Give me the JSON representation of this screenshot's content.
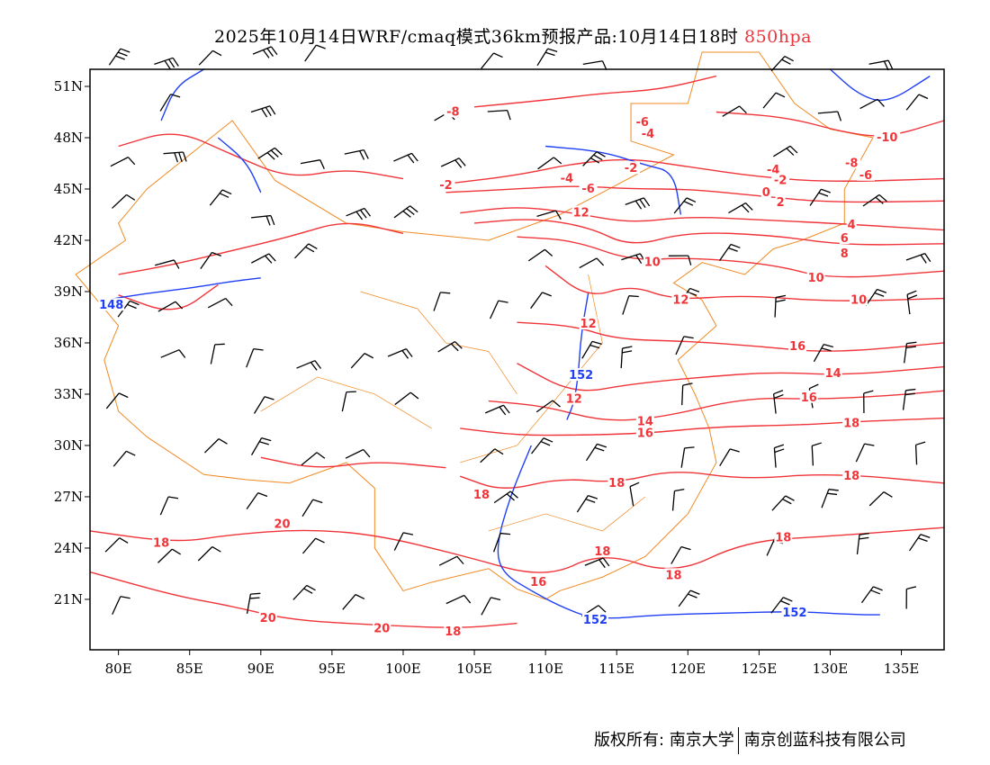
{
  "title": {
    "main": "2025年10月14日WRF/cmaq模式36km预报产品:10月14日18时",
    "level": "850hpa"
  },
  "footer": {
    "copyright": "版权所有: 南京大学",
    "company": "南京创蓝科技有限公司"
  },
  "axes": {
    "lon_ticks": [
      {
        "v": 80,
        "label": "80E"
      },
      {
        "v": 85,
        "label": "85E"
      },
      {
        "v": 90,
        "label": "90E"
      },
      {
        "v": 95,
        "label": "95E"
      },
      {
        "v": 100,
        "label": "100E"
      },
      {
        "v": 105,
        "label": "105E"
      },
      {
        "v": 110,
        "label": "110E"
      },
      {
        "v": 115,
        "label": "115E"
      },
      {
        "v": 120,
        "label": "120E"
      },
      {
        "v": 125,
        "label": "125E"
      },
      {
        "v": 130,
        "label": "130E"
      },
      {
        "v": 135,
        "label": "135E"
      }
    ],
    "lat_ticks": [
      {
        "v": 21,
        "label": "21N"
      },
      {
        "v": 24,
        "label": "24N"
      },
      {
        "v": 27,
        "label": "27N"
      },
      {
        "v": 30,
        "label": "30N"
      },
      {
        "v": 33,
        "label": "33N"
      },
      {
        "v": 36,
        "label": "36N"
      },
      {
        "v": 39,
        "label": "39N"
      },
      {
        "v": 42,
        "label": "42N"
      },
      {
        "v": 45,
        "label": "45N"
      },
      {
        "v": 48,
        "label": "48N"
      },
      {
        "v": 51,
        "label": "51N"
      }
    ],
    "lon_range": [
      78,
      138
    ],
    "lat_range": [
      18.05,
      52
    ]
  },
  "colors": {
    "temperature": "#f0353a",
    "height": "#1f3ff5",
    "border": "#f08a24",
    "wind": "#000000"
  },
  "temp_labels": [
    {
      "t": "-8",
      "lon": 103.5,
      "lat": 49.5
    },
    {
      "t": "-6",
      "lon": 116.8,
      "lat": 48.9
    },
    {
      "t": "-4",
      "lon": 117.2,
      "lat": 48.2
    },
    {
      "t": "-2",
      "lon": 103,
      "lat": 45.2
    },
    {
      "t": "-4",
      "lon": 111.5,
      "lat": 45.6
    },
    {
      "t": "-6",
      "lon": 113,
      "lat": 45
    },
    {
      "t": "-2",
      "lon": 116,
      "lat": 46.2
    },
    {
      "t": "12",
      "lon": 112.5,
      "lat": 43.6
    },
    {
      "t": "10",
      "lon": 117.5,
      "lat": 40.7
    },
    {
      "t": "12",
      "lon": 119.5,
      "lat": 38.5
    },
    {
      "t": "12",
      "lon": 113,
      "lat": 37.1
    },
    {
      "t": "12",
      "lon": 112,
      "lat": 32.7
    },
    {
      "t": "14",
      "lon": 117,
      "lat": 31.4
    },
    {
      "t": "16",
      "lon": 117,
      "lat": 30.7
    },
    {
      "t": "-10",
      "lon": 134,
      "lat": 48
    },
    {
      "t": "-8",
      "lon": 131.5,
      "lat": 46.5
    },
    {
      "t": "-6",
      "lon": 132.5,
      "lat": 45.8
    },
    {
      "t": "-4",
      "lon": 126,
      "lat": 46.1
    },
    {
      "t": "-2",
      "lon": 126.5,
      "lat": 45.5
    },
    {
      "t": "0",
      "lon": 125.5,
      "lat": 44.8
    },
    {
      "t": "2",
      "lon": 126.5,
      "lat": 44.2
    },
    {
      "t": "4",
      "lon": 131.5,
      "lat": 42.9
    },
    {
      "t": "6",
      "lon": 131,
      "lat": 42.1
    },
    {
      "t": "8",
      "lon": 131,
      "lat": 41.2
    },
    {
      "t": "10",
      "lon": 129,
      "lat": 39.8
    },
    {
      "t": "10",
      "lon": 132,
      "lat": 38.5
    },
    {
      "t": "16",
      "lon": 127.7,
      "lat": 35.8
    },
    {
      "t": "14",
      "lon": 130.2,
      "lat": 34.2
    },
    {
      "t": "16",
      "lon": 128.5,
      "lat": 32.8
    },
    {
      "t": "18",
      "lon": 131.5,
      "lat": 31.3
    },
    {
      "t": "18",
      "lon": 131.5,
      "lat": 28.2
    },
    {
      "t": "18",
      "lon": 115,
      "lat": 27.8
    },
    {
      "t": "18",
      "lon": 105.5,
      "lat": 27.1
    },
    {
      "t": "18",
      "lon": 114,
      "lat": 23.8
    },
    {
      "t": "16",
      "lon": 109.5,
      "lat": 22
    },
    {
      "t": "18",
      "lon": 119,
      "lat": 22.4
    },
    {
      "t": "18",
      "lon": 126.7,
      "lat": 24.6
    },
    {
      "t": "18",
      "lon": 83,
      "lat": 24.3
    },
    {
      "t": "20",
      "lon": 91.5,
      "lat": 25.4
    },
    {
      "t": "20",
      "lon": 90.5,
      "lat": 19.9
    },
    {
      "t": "20",
      "lon": 98.5,
      "lat": 19.3
    },
    {
      "t": "18",
      "lon": 103.5,
      "lat": 19.1
    }
  ],
  "height_labels": [
    {
      "t": "148",
      "lon": 79.5,
      "lat": 38.2
    },
    {
      "t": "152",
      "lon": 112.5,
      "lat": 34.1
    },
    {
      "t": "152",
      "lon": 113.5,
      "lat": 19.8
    },
    {
      "t": "152",
      "lon": 127.5,
      "lat": 20.2
    }
  ],
  "temp_contours": [
    [
      [
        103,
        45.3
      ],
      [
        108,
        45.8
      ],
      [
        112,
        46.5
      ],
      [
        116,
        46.8
      ],
      [
        120,
        46.3
      ],
      [
        125,
        45.7
      ],
      [
        130,
        45.4
      ],
      [
        138,
        45.6
      ]
    ],
    [
      [
        103,
        44.8
      ],
      [
        108,
        45.0
      ],
      [
        112,
        45.2
      ],
      [
        116,
        45.0
      ],
      [
        120,
        45.0
      ],
      [
        125,
        44.6
      ],
      [
        130,
        44.2
      ],
      [
        138,
        44.3
      ]
    ],
    [
      [
        104,
        43.6
      ],
      [
        108,
        44.0
      ],
      [
        112,
        43.6
      ],
      [
        116,
        43.0
      ],
      [
        120,
        43.4
      ],
      [
        125,
        43.2
      ],
      [
        130,
        43.0
      ],
      [
        138,
        42.6
      ]
    ],
    [
      [
        105,
        43.0
      ],
      [
        109,
        43.3
      ],
      [
        113,
        42.8
      ],
      [
        116,
        41.6
      ],
      [
        120,
        42.5
      ],
      [
        126,
        42.3
      ],
      [
        131,
        41.7
      ],
      [
        138,
        41.8
      ]
    ],
    [
      [
        108,
        42.2
      ],
      [
        112,
        42.0
      ],
      [
        116,
        40.8
      ],
      [
        120,
        41.0
      ],
      [
        126,
        40.6
      ],
      [
        130,
        39.7
      ],
      [
        138,
        40.2
      ]
    ],
    [
      [
        110,
        40.5
      ],
      [
        113,
        38.6
      ],
      [
        116,
        39.4
      ],
      [
        119,
        38.5
      ],
      [
        124,
        38.8
      ],
      [
        130,
        38.4
      ],
      [
        138,
        38.6
      ]
    ],
    [
      [
        108,
        37.2
      ],
      [
        112,
        37.0
      ],
      [
        115,
        36.2
      ],
      [
        120,
        36.1
      ],
      [
        125,
        35.8
      ],
      [
        130,
        35.4
      ],
      [
        138,
        36
      ]
    ],
    [
      [
        108,
        34.8
      ],
      [
        112,
        33.0
      ],
      [
        116,
        33.6
      ],
      [
        121,
        34
      ],
      [
        126,
        34.3
      ],
      [
        131,
        34.1
      ],
      [
        138,
        34.6
      ]
    ],
    [
      [
        106,
        32.6
      ],
      [
        110,
        32.3
      ],
      [
        114,
        31.4
      ],
      [
        118,
        31.6
      ],
      [
        124,
        32.8
      ],
      [
        129,
        32.7
      ],
      [
        134,
        32.9
      ],
      [
        138,
        33.2
      ]
    ],
    [
      [
        104,
        31.0
      ],
      [
        108,
        30.6
      ],
      [
        112,
        30.6
      ],
      [
        117,
        30.7
      ],
      [
        122,
        31.1
      ],
      [
        128,
        31.2
      ],
      [
        132,
        31.4
      ],
      [
        138,
        31.6
      ]
    ],
    [
      [
        104,
        28.2
      ],
      [
        107,
        27.3
      ],
      [
        111,
        28.1
      ],
      [
        115,
        27.8
      ],
      [
        119,
        28.6
      ],
      [
        124,
        28
      ],
      [
        130,
        28.4
      ],
      [
        138,
        27.8
      ]
    ],
    [
      [
        78,
        25.0
      ],
      [
        84,
        24.3
      ],
      [
        88,
        24.8
      ],
      [
        93,
        25.1
      ],
      [
        98,
        24.8
      ],
      [
        104,
        23.6
      ],
      [
        110,
        22.2
      ],
      [
        114,
        23.8
      ],
      [
        119,
        22.4
      ],
      [
        124,
        24.4
      ],
      [
        130,
        24.7
      ],
      [
        138,
        25.2
      ]
    ],
    [
      [
        78,
        22.6
      ],
      [
        84,
        21.2
      ],
      [
        88,
        20.6
      ],
      [
        92,
        19.8
      ],
      [
        98,
        19.5
      ],
      [
        104,
        19.3
      ],
      [
        108,
        19.6
      ]
    ],
    [
      [
        80,
        47.5
      ],
      [
        84,
        48.5
      ],
      [
        88,
        47
      ],
      [
        92,
        45.6
      ],
      [
        96,
        46.2
      ],
      [
        100,
        45.6
      ]
    ],
    [
      [
        80,
        40
      ],
      [
        84,
        40.6
      ],
      [
        88,
        41.4
      ],
      [
        92,
        42.2
      ],
      [
        96,
        43.2
      ],
      [
        100,
        42.4
      ]
    ],
    [
      [
        80,
        38.8
      ],
      [
        84,
        37.6
      ],
      [
        87,
        39.4
      ]
    ],
    [
      [
        90,
        29.3
      ],
      [
        94,
        28.6
      ],
      [
        98,
        29.1
      ],
      [
        103,
        28.7
      ]
    ],
    [
      [
        105,
        49.8
      ],
      [
        110,
        50.2
      ],
      [
        114,
        50.6
      ],
      [
        118,
        50.8
      ],
      [
        122,
        51.6
      ]
    ],
    [
      [
        122,
        49.5
      ],
      [
        127,
        49.2
      ],
      [
        131,
        48.3
      ],
      [
        134,
        48
      ],
      [
        138,
        49
      ]
    ]
  ],
  "height_contours": [
    [
      [
        79,
        38.5
      ],
      [
        82,
        38.9
      ],
      [
        85,
        39.2
      ],
      [
        88,
        39.6
      ],
      [
        90,
        39.8
      ]
    ],
    [
      [
        113,
        38.9
      ],
      [
        112.5,
        36.5
      ],
      [
        112.3,
        34.1
      ],
      [
        112,
        32.5
      ],
      [
        111.5,
        31.5
      ]
    ],
    [
      [
        109,
        30
      ],
      [
        107.5,
        27
      ],
      [
        106.5,
        24
      ],
      [
        107,
        22.5
      ],
      [
        109,
        21.5
      ],
      [
        111,
        20.6
      ],
      [
        113.5,
        19.8
      ],
      [
        118,
        20.1
      ],
      [
        123,
        20.2
      ],
      [
        127.5,
        20.3
      ],
      [
        132,
        20.1
      ],
      [
        133.5,
        20.1
      ]
    ],
    [
      [
        110,
        47.5
      ],
      [
        114,
        47.2
      ],
      [
        117,
        46.4
      ],
      [
        119,
        46.0
      ],
      [
        119.5,
        43.5
      ]
    ],
    [
      [
        87,
        48
      ],
      [
        89,
        46.6
      ],
      [
        90,
        44.8
      ]
    ],
    [
      [
        83,
        49
      ],
      [
        84,
        51
      ],
      [
        86,
        52
      ]
    ],
    [
      [
        130,
        52
      ],
      [
        132,
        50.5
      ],
      [
        134,
        50
      ],
      [
        137,
        51.6
      ]
    ]
  ]
}
